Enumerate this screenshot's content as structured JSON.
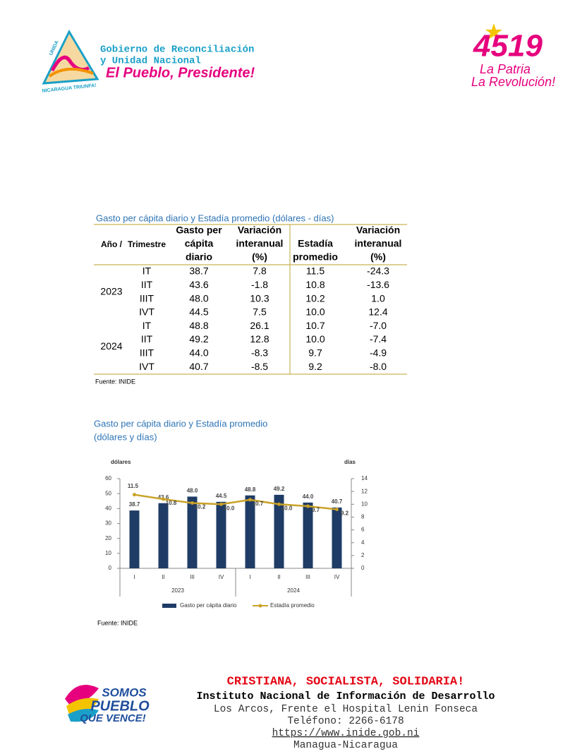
{
  "header": {
    "left_logo_top": "UNIDA",
    "left_logo_bottom": "NICARAGUA TRIUNFA!",
    "org_line1": "Gobierno de Reconciliación",
    "org_line2": "y Unidad Nacional",
    "slogan": "El Pueblo, Presidente!",
    "right_number": "4519",
    "right_line1": "La Patria",
    "right_line2": "La Revolución!"
  },
  "table": {
    "title": "Gasto per cápita diario y Estadía promedio (dólares - días)",
    "columns": [
      [
        "Año /"
      ],
      [
        "Trimestre"
      ],
      [
        "Gasto per",
        "cápita",
        "diario"
      ],
      [
        "Variación",
        "interanual",
        "(%)"
      ],
      [
        "Estadía",
        "promedio"
      ],
      [
        "Variación",
        "interanual",
        "(%)"
      ]
    ],
    "groups": [
      {
        "year": "2023",
        "rows": [
          [
            "IT",
            "38.7",
            "7.8",
            "11.5",
            "-24.3"
          ],
          [
            "IIT",
            "43.6",
            "-1.8",
            "10.8",
            "-13.6"
          ],
          [
            "IIIT",
            "48.0",
            "10.3",
            "10.2",
            "1.0"
          ],
          [
            "IVT",
            "44.5",
            "7.5",
            "10.0",
            "12.4"
          ]
        ]
      },
      {
        "year": "2024",
        "rows": [
          [
            "IT",
            "48.8",
            "26.1",
            "10.7",
            "-7.0"
          ],
          [
            "IIT",
            "49.2",
            "12.8",
            "10.0",
            "-7.4"
          ],
          [
            "IIIT",
            "44.0",
            "-8.3",
            "9.7",
            "-4.9"
          ],
          [
            "IVT",
            "40.7",
            "-8.5",
            "9.2",
            "-8.0"
          ]
        ]
      }
    ],
    "source": "Fuente: INIDE"
  },
  "chart_data": {
    "type": "bar-line",
    "title": "Gasto per cápita diario y Estadía promedio",
    "subtitle": "(dólares y días)",
    "y_label": "dólares",
    "y2_label": "días",
    "categories": [
      "I",
      "II",
      "III",
      "IV",
      "I",
      "II",
      "III",
      "IV"
    ],
    "groups": [
      "2023",
      "2024"
    ],
    "series": [
      {
        "name": "Gasto per cápita diario",
        "color": "#1f3c66",
        "values": [
          38.7,
          43.6,
          48.0,
          44.5,
          48.8,
          49.2,
          44.0,
          40.7
        ],
        "value_labels": [
          "38.7",
          "43.6",
          "48.0",
          "44.5",
          "48.8",
          "49.2",
          "44.0",
          "40.7"
        ]
      },
      {
        "name": "Estadía promedio",
        "color": "#c9a227",
        "axis": "y2",
        "values": [
          11.5,
          10.8,
          10.2,
          10.0,
          10.7,
          10.0,
          9.7,
          9.2
        ],
        "value_labels": [
          "11.5",
          "10.8",
          "10.2",
          "10.0",
          "10.7",
          "10.0",
          "9.7",
          "9.2"
        ]
      }
    ],
    "ylim": [
      0,
      60
    ],
    "yticks": [
      0,
      10,
      20,
      30,
      40,
      50,
      60
    ],
    "y2lim": [
      0,
      14
    ],
    "y2ticks": [
      0,
      2,
      4,
      6,
      8,
      10,
      12,
      14
    ],
    "source": "Fuente: INIDE"
  },
  "footer": {
    "logo_line1": "SOMOS",
    "logo_line2": "PUEBLO",
    "logo_line3": "QUE VENCE!",
    "motto": "CRISTIANA, SOCIALISTA, SOLIDARIA!",
    "institute": "Instituto Nacional de Información de Desarrollo",
    "address": "Los Arcos, Frente el Hospital Lenin Fonseca",
    "phone": "Teléfono: 2266-6178",
    "url": "https://www.inide.gob.ni",
    "city": "Managua-Nicaragua"
  }
}
